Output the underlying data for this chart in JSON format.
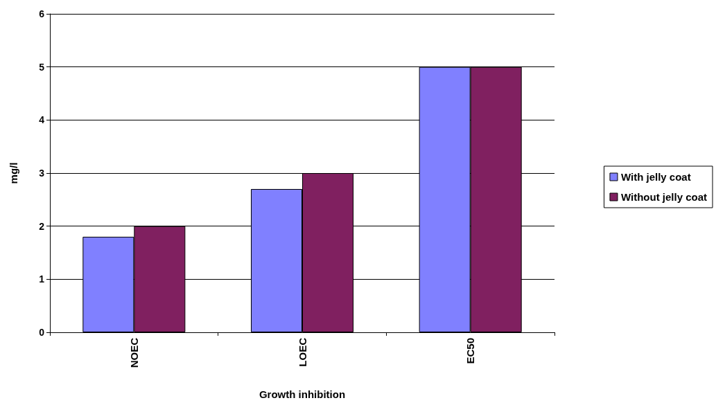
{
  "chart_data": {
    "type": "bar",
    "xlabel": "Growth inhibition",
    "ylabel": "mg/l",
    "categories": [
      "NOEC",
      "LOEC",
      "EC50"
    ],
    "series": [
      {
        "name": "With jelly coat",
        "color": "#8080ff",
        "values": [
          1.8,
          2.7,
          5
        ]
      },
      {
        "name": "Without jelly coat",
        "color": "#802060",
        "values": [
          2,
          3,
          5
        ]
      }
    ],
    "ylim": [
      0,
      6
    ],
    "yticks": [
      0,
      1,
      2,
      3,
      4,
      5,
      6
    ],
    "grid": "y",
    "legend": "right"
  }
}
